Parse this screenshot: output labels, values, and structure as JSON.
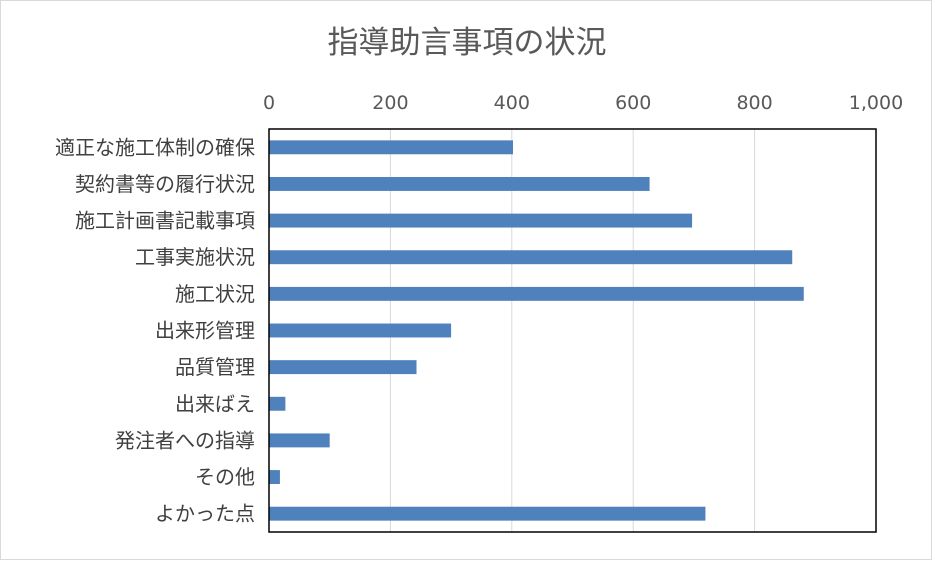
{
  "chart_data": {
    "type": "bar",
    "orientation": "horizontal",
    "title": "指導助言事項の状況",
    "categories": [
      "適正な施工体制の確保",
      "契約書等の履行状況",
      "施工計画書記載事項",
      "工事実施状況",
      "施工状況",
      "出来形管理",
      "品質管理",
      "出来ばえ",
      "発注者への指導",
      "その他",
      "よかった点"
    ],
    "values": [
      402,
      627,
      697,
      862,
      881,
      300,
      243,
      27,
      100,
      18,
      719
    ],
    "xlim": [
      0,
      1000
    ],
    "xticks": [
      "0",
      "200",
      "400",
      "600",
      "800",
      "1,000"
    ],
    "xaxis_position": "top",
    "grid": true,
    "bar_color": "#4f81bd",
    "grid_color": "#d9d9d9"
  }
}
